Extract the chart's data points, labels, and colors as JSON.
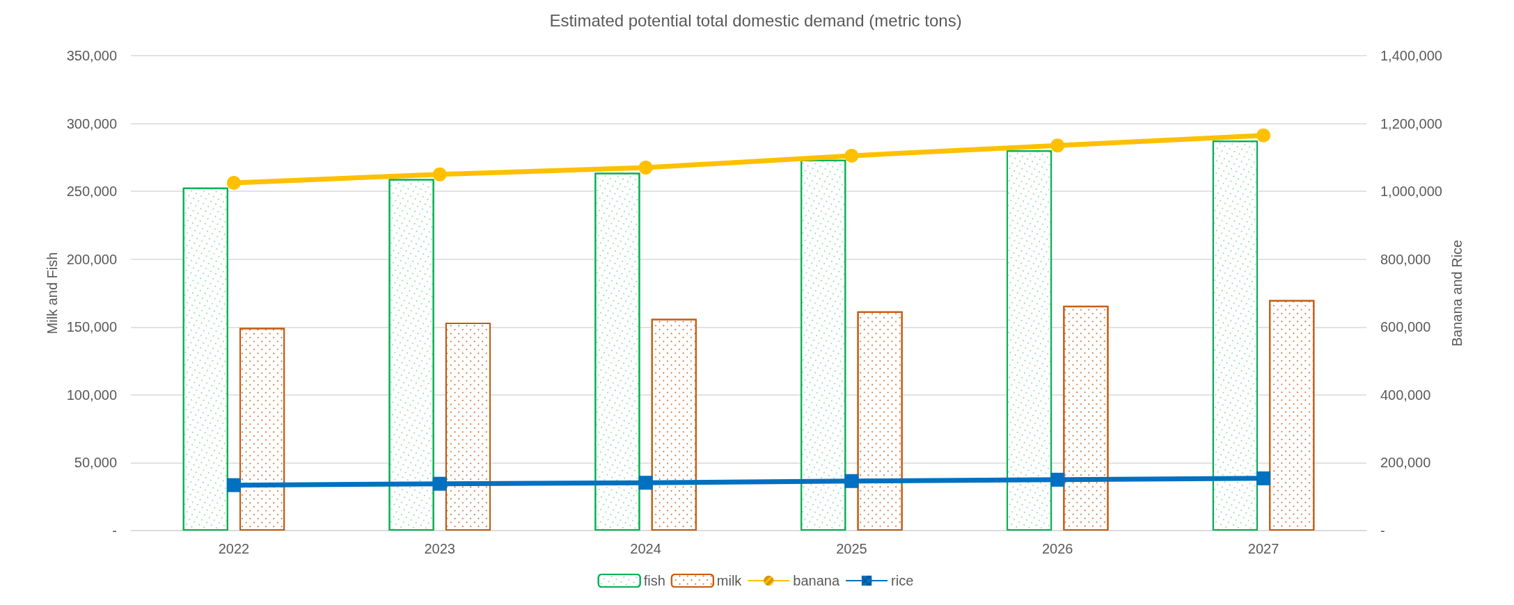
{
  "chart_data": {
    "type": "bar",
    "title": "Estimated potential total domestic demand (metric tons)",
    "ylabel": "Milk and Fish",
    "y2label": "Banana and Rice",
    "categories": [
      "2022",
      "2023",
      "2024",
      "2025",
      "2026",
      "2027"
    ],
    "series": [
      {
        "name": "fish",
        "color": "#00b050",
        "values": [
          252700,
          259100,
          263600,
          273200,
          280200,
          287300
        ]
      },
      {
        "name": "milk",
        "color": "#c55a11",
        "values": [
          149400,
          153200,
          156100,
          161500,
          165700,
          169900
        ]
      },
      {
        "name": "banana",
        "type": "line",
        "axis": "y2",
        "color": "#ffc000",
        "values": [
          1025000,
          1050000,
          1070000,
          1105000,
          1135000,
          1165000
        ]
      },
      {
        "name": "rice",
        "type": "line",
        "axis": "y2",
        "color": "#0070c0",
        "marker": "square",
        "values": [
          134000,
          138000,
          141000,
          146000,
          150000,
          154000
        ]
      }
    ],
    "ylim": [
      0,
      350000
    ],
    "yticks": [
      {
        "value": 0,
        "label": "-"
      },
      {
        "value": 50000,
        "label": "50,000"
      },
      {
        "value": 100000,
        "label": "100,000"
      },
      {
        "value": 150000,
        "label": "150,000"
      },
      {
        "value": 200000,
        "label": "200,000"
      },
      {
        "value": 250000,
        "label": "250,000"
      },
      {
        "value": 300000,
        "label": "300,000"
      },
      {
        "value": 350000,
        "label": "350,000"
      }
    ],
    "y2lim": [
      0,
      1400000
    ],
    "y2ticks": [
      {
        "value": 0,
        "label": "-"
      },
      {
        "value": 200000,
        "label": "200,000"
      },
      {
        "value": 400000,
        "label": "400,000"
      },
      {
        "value": 600000,
        "label": "600,000"
      },
      {
        "value": 800000,
        "label": "800,000"
      },
      {
        "value": 1000000,
        "label": "1,000,000"
      },
      {
        "value": 1200000,
        "label": "1,200,000"
      },
      {
        "value": 1400000,
        "label": "1,400,000"
      }
    ],
    "grid": "y",
    "legend": "bottom",
    "marker": "circle"
  }
}
